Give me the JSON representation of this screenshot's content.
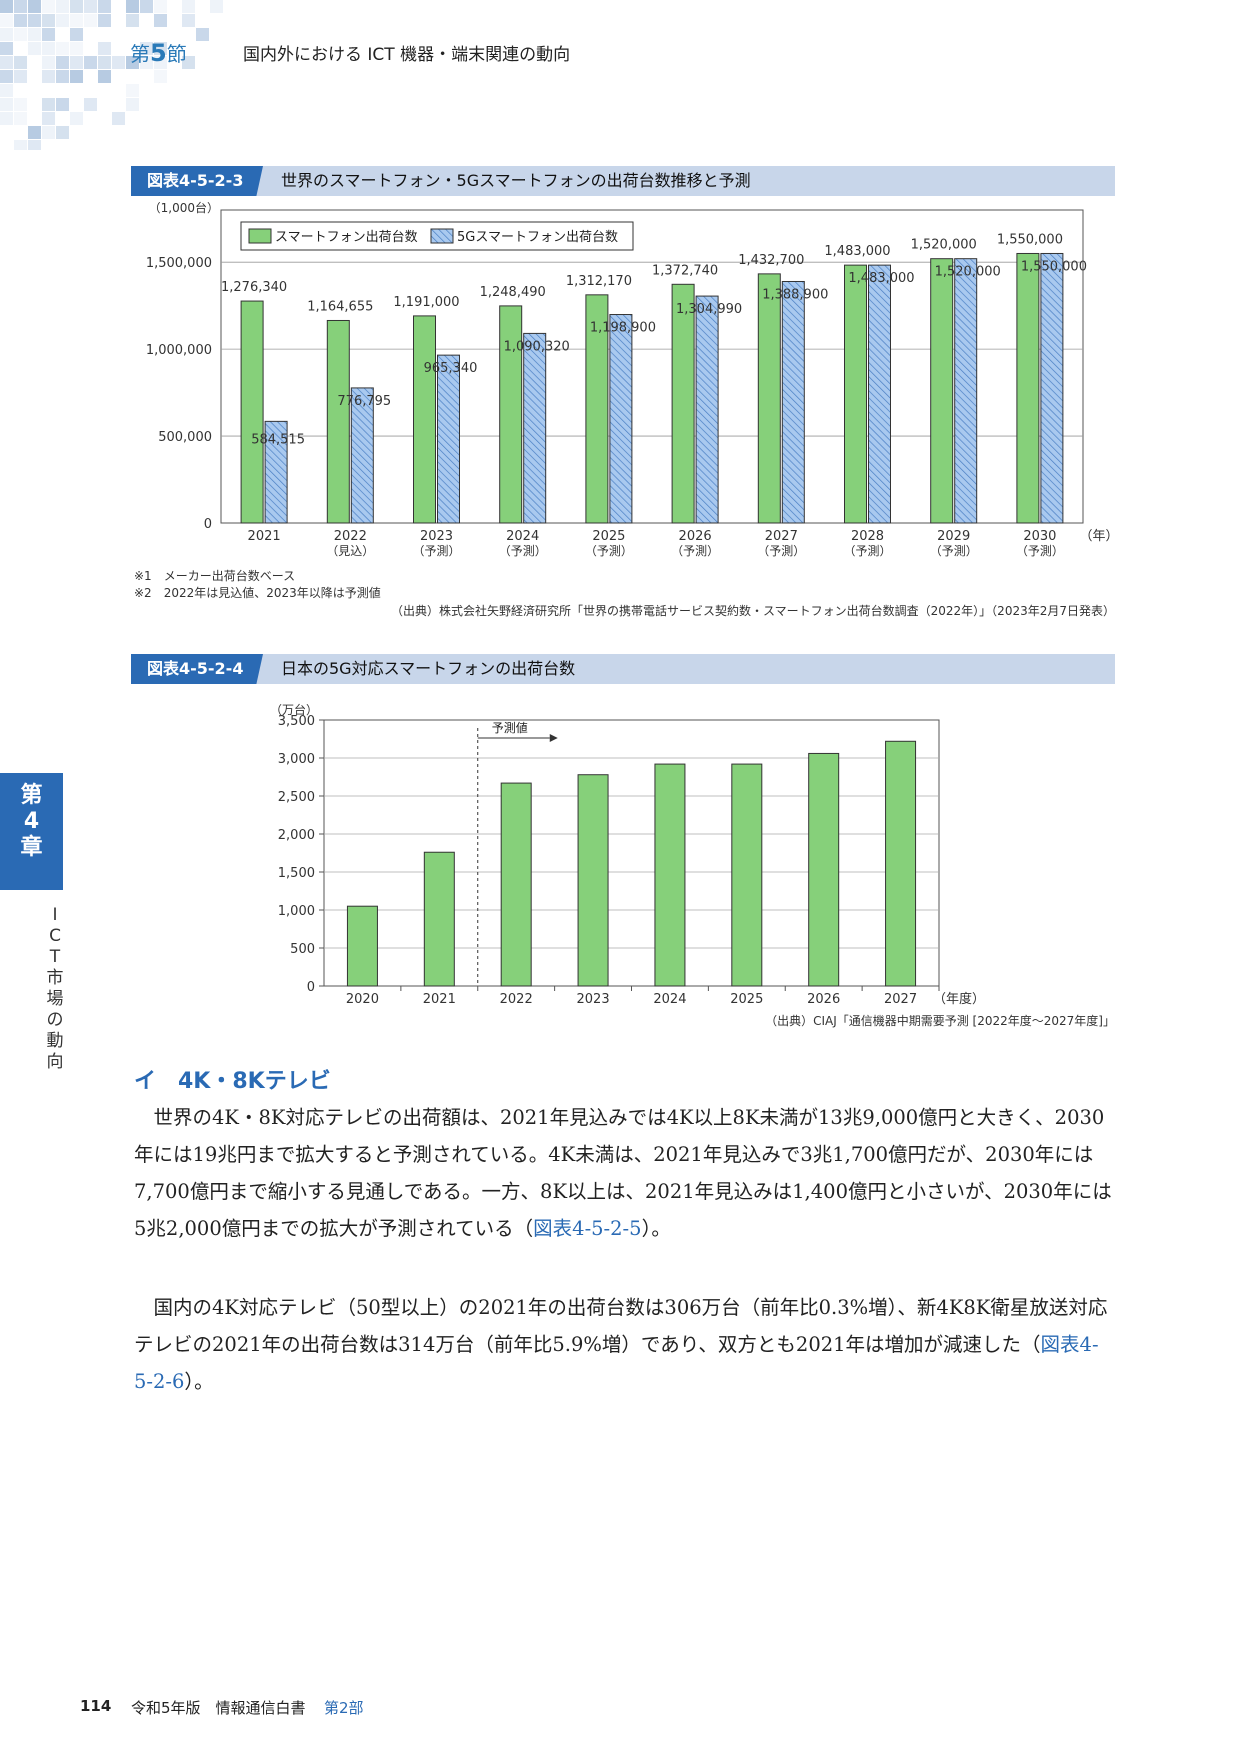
{
  "header": {
    "section_prefix": "第",
    "section_num": "5",
    "section_suffix": "節",
    "section_title": "国内外における ICT 機器・端末関連の動向"
  },
  "side_tab": {
    "chapter": [
      "第",
      "4",
      "章"
    ],
    "title_chars": [
      "I",
      "C",
      "T",
      "市",
      "場",
      "の",
      "動",
      "向"
    ]
  },
  "figure1": {
    "tag": "図表4-5-2-3",
    "title": "世界のスマートフォン・5Gスマートフォンの出荷台数推移と予測",
    "notes": [
      "※1　メーカー出荷台数ベース",
      "※2　2022年は見込値、2023年以降は予測値"
    ],
    "source": "（出典）株式会社矢野経済研究所「世界の携帯電話サービス契約数・スマートフォン出荷台数調査（2022年）」（2023年2月7日発表）"
  },
  "figure2": {
    "tag": "図表4-5-2-4",
    "title": "日本の5G対応スマートフォンの出荷台数",
    "source": "（出典）CIAJ「通信機器中期需要予測 [2022年度～2027年度]」"
  },
  "chart_data": [
    {
      "type": "bar",
      "unit_label": "（1,000台）",
      "x_unit": "（年）",
      "categories": [
        "2021",
        "2022",
        "2023",
        "2024",
        "2025",
        "2026",
        "2027",
        "2028",
        "2029",
        "2030"
      ],
      "category_sublabels": [
        "",
        "（見込）",
        "（予測）",
        "（予測）",
        "（予測）",
        "（予測）",
        "（予測）",
        "（予測）",
        "（予測）",
        "（予測）"
      ],
      "series": [
        {
          "name": "スマートフォン出荷台数",
          "color": "#86d07a",
          "values": [
            1276340,
            1164655,
            1191000,
            1248490,
            1312170,
            1372740,
            1432700,
            1483000,
            1520000,
            1550000
          ],
          "labels": [
            "1,276,340",
            "1,164,655",
            "1,191,000",
            "1,248,490",
            "1,312,170",
            "1,372,740",
            "1,432,700",
            "1,483,000",
            "1,520,000",
            "1,550,000"
          ]
        },
        {
          "name": "5Gスマートフォン出荷台数",
          "color": "#9cc0ea",
          "pattern": "hatched",
          "values": [
            584515,
            776795,
            965340,
            1090320,
            1198900,
            1304990,
            1388900,
            1483000,
            1520000,
            1550000
          ],
          "labels": [
            "584,515",
            "776,795",
            "965,340",
            "1,090,320",
            "1,198,900",
            "1,304,990",
            "1,388,900",
            "1,483,000",
            "1,520,000",
            "1,550,000"
          ]
        }
      ],
      "yticks": [
        0,
        500000,
        1000000,
        1500000
      ],
      "ytick_labels": [
        "0",
        "500,000",
        "1,000,000",
        "1,500,000"
      ],
      "ylim": [
        0,
        1800000
      ],
      "grid": true,
      "legend": "top-left"
    },
    {
      "type": "bar",
      "unit_label": "（万台）",
      "x_unit": "（年度）",
      "categories": [
        "2020",
        "2021",
        "2022",
        "2023",
        "2024",
        "2025",
        "2026",
        "2027"
      ],
      "values": [
        1050,
        1760,
        2670,
        2780,
        2920,
        2920,
        3060,
        3220
      ],
      "color": "#86d07a",
      "yticks": [
        0,
        500,
        1000,
        1500,
        2000,
        2500,
        3000,
        3500
      ],
      "ytick_labels": [
        "0",
        "500",
        "1,000",
        "1,500",
        "2,000",
        "2,500",
        "3,000",
        "3,500"
      ],
      "ylim": [
        0,
        3500
      ],
      "annotation": "予測値",
      "forecast_start": "2022",
      "grid": true
    }
  ],
  "section_i": {
    "heading": "イ　4K・8Kテレビ",
    "p1": "世界の4K・8K対応テレビの出荷額は、2021年見込みでは4K以上8K未満が13兆9,000億円と大きく、2030年には19兆円まで拡大すると予測されている。4K未満は、2021年見込みで3兆1,700億円だが、2030年には7,700億円まで縮小する見通しである。一方、8K以上は、2021年見込みは1,400億円と小さいが、2030年には5兆2,000億円までの拡大が予測されている（",
    "p1_ref": "図表4-5-2-5",
    "p1_end": "）。",
    "p2": "国内の4K対応テレビ（50型以上）の2021年の出荷台数は306万台（前年比0.3%増）、新4K8K衛星放送対応テレビの2021年の出荷台数は314万台（前年比5.9%増）であり、双方とも2021年は増加が減速した（",
    "p2_ref": "図表4-5-2-6",
    "p2_end": "）。"
  },
  "footer": {
    "page": "114",
    "text": "令和5年版　情報通信白書",
    "part": "第2部"
  }
}
